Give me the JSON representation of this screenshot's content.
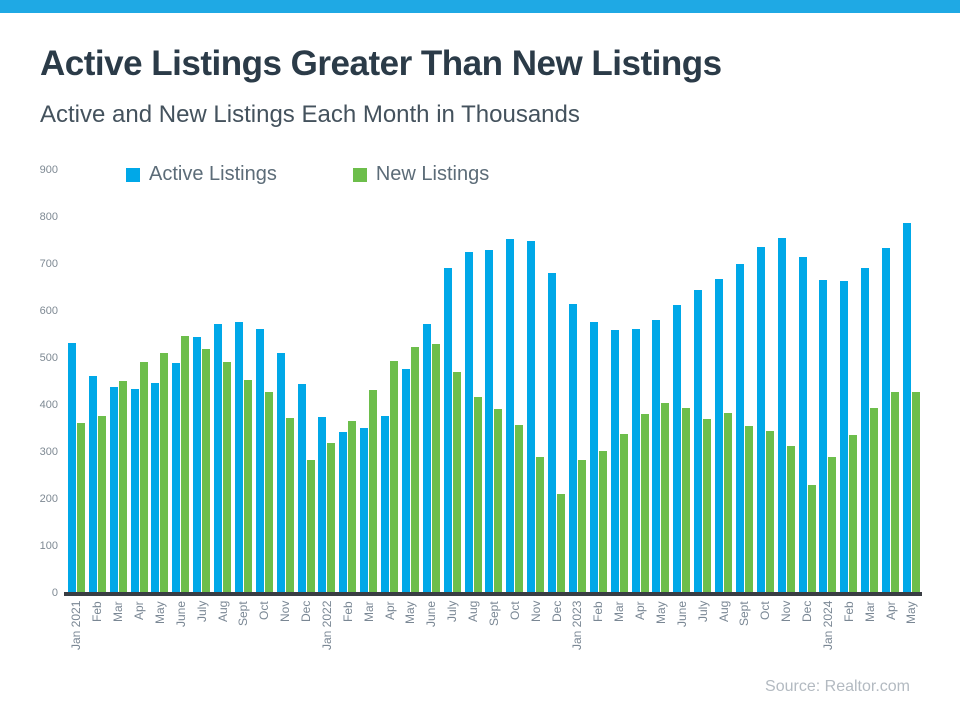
{
  "banner_color": "#1FA9E4",
  "title": "Active Listings Greater Than New Listings",
  "subtitle": "Active and New Listings Each Month in Thousands",
  "source": "Source: Realtor.com",
  "colors": {
    "active": "#00A8E8",
    "new": "#6DBE4B",
    "axis": "#393D43",
    "title_text": "#2B3B48",
    "subtitle_text": "#44525D",
    "legend_text": "#5C6C78"
  },
  "chart_data": {
    "type": "bar",
    "title": "Active Listings Greater Than New Listings",
    "subtitle": "Active and New Listings Each Month in Thousands",
    "xlabel": "",
    "ylabel": "",
    "ylim": [
      0,
      900
    ],
    "yticks": [
      900,
      800,
      700,
      600,
      500,
      400,
      300,
      200,
      100,
      0
    ],
    "grid": false,
    "legend_position": "top",
    "categories": [
      "Jan 2021",
      "Feb",
      "Mar",
      "Apr",
      "May",
      "June",
      "July",
      "Aug",
      "Sept",
      "Oct",
      "Nov",
      "Dec",
      "Jan 2022",
      "Feb",
      "Mar",
      "Apr",
      "May",
      "June",
      "July",
      "Aug",
      "Sept",
      "Oct",
      "Nov",
      "Dec",
      "Jan 2023",
      "Feb",
      "Mar",
      "Apr",
      "May",
      "June",
      "July",
      "Aug",
      "Sept",
      "Oct",
      "Nov",
      "Dec",
      "Jan 2024",
      "Feb",
      "Mar",
      "Apr",
      "May"
    ],
    "series": [
      {
        "name": "Active Listings",
        "color": "#00A8E8",
        "values": [
          531,
          462,
          439,
          434,
          446,
          490,
          544,
          573,
          577,
          562,
          511,
          444,
          375,
          342,
          352,
          377,
          476,
          572,
          691,
          726,
          730,
          753,
          749,
          680,
          615,
          577,
          560,
          562,
          581,
          613,
          645,
          668,
          699,
          737,
          756,
          714,
          665,
          663,
          692,
          734,
          788
        ]
      },
      {
        "name": "New Listings",
        "color": "#6DBE4B",
        "values": [
          361,
          377,
          451,
          491,
          510,
          546,
          519,
          491,
          453,
          427,
          373,
          283,
          320,
          365,
          432,
          494,
          524,
          530,
          470,
          416,
          391,
          357,
          290,
          210,
          283,
          303,
          338,
          381,
          405,
          393,
          370,
          384,
          355,
          345,
          313,
          230,
          290,
          336,
          393,
          428,
          428
        ]
      }
    ]
  }
}
